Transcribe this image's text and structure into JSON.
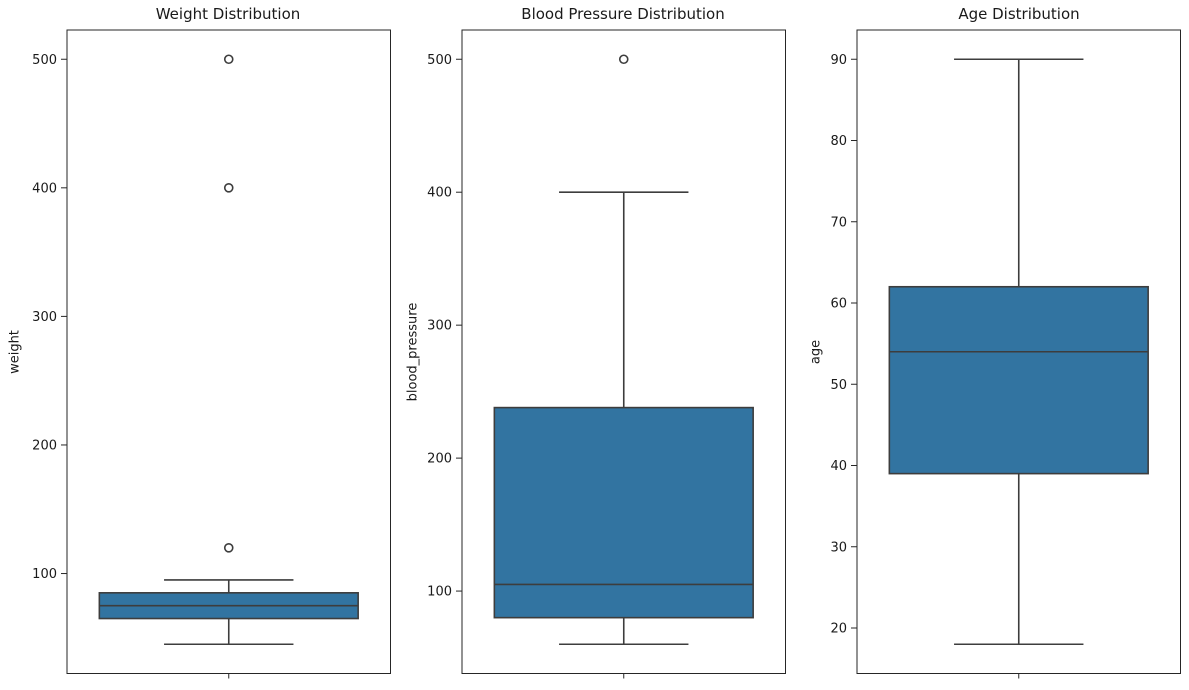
{
  "figure": {
    "background": "#ffffff",
    "box_fill_color": "#3274a1",
    "box_edge_color": "#3d3d3d",
    "axis_color": "#262626",
    "text_color": "#1a1a1a"
  },
  "chart_data": [
    {
      "type": "box",
      "title": "Weight Distribution",
      "ylabel": "weight",
      "xlabel": "",
      "yticks": [
        100,
        200,
        300,
        400,
        500
      ],
      "ylim": [
        22.25,
        522.75
      ],
      "grid": false,
      "box": {
        "q1": 65,
        "median": 75,
        "q3": 85,
        "whisker_low": 45,
        "whisker_high": 95,
        "outliers": [
          120,
          400,
          500
        ]
      }
    },
    {
      "type": "box",
      "title": "Blood Pressure Distribution",
      "ylabel": "blood_pressure",
      "xlabel": "",
      "yticks": [
        100,
        200,
        300,
        400,
        500
      ],
      "ylim": [
        38,
        522
      ],
      "grid": false,
      "box": {
        "q1": 80,
        "median": 105,
        "q3": 238,
        "whisker_low": 60,
        "whisker_high": 400,
        "outliers": [
          500
        ]
      }
    },
    {
      "type": "box",
      "title": "Age Distribution",
      "ylabel": "age",
      "xlabel": "",
      "yticks": [
        20,
        30,
        40,
        50,
        60,
        70,
        80,
        90
      ],
      "ylim": [
        14.4,
        93.6
      ],
      "grid": false,
      "box": {
        "q1": 39,
        "median": 54,
        "q3": 62,
        "whisker_low": 18,
        "whisker_high": 90,
        "outliers": []
      }
    }
  ]
}
